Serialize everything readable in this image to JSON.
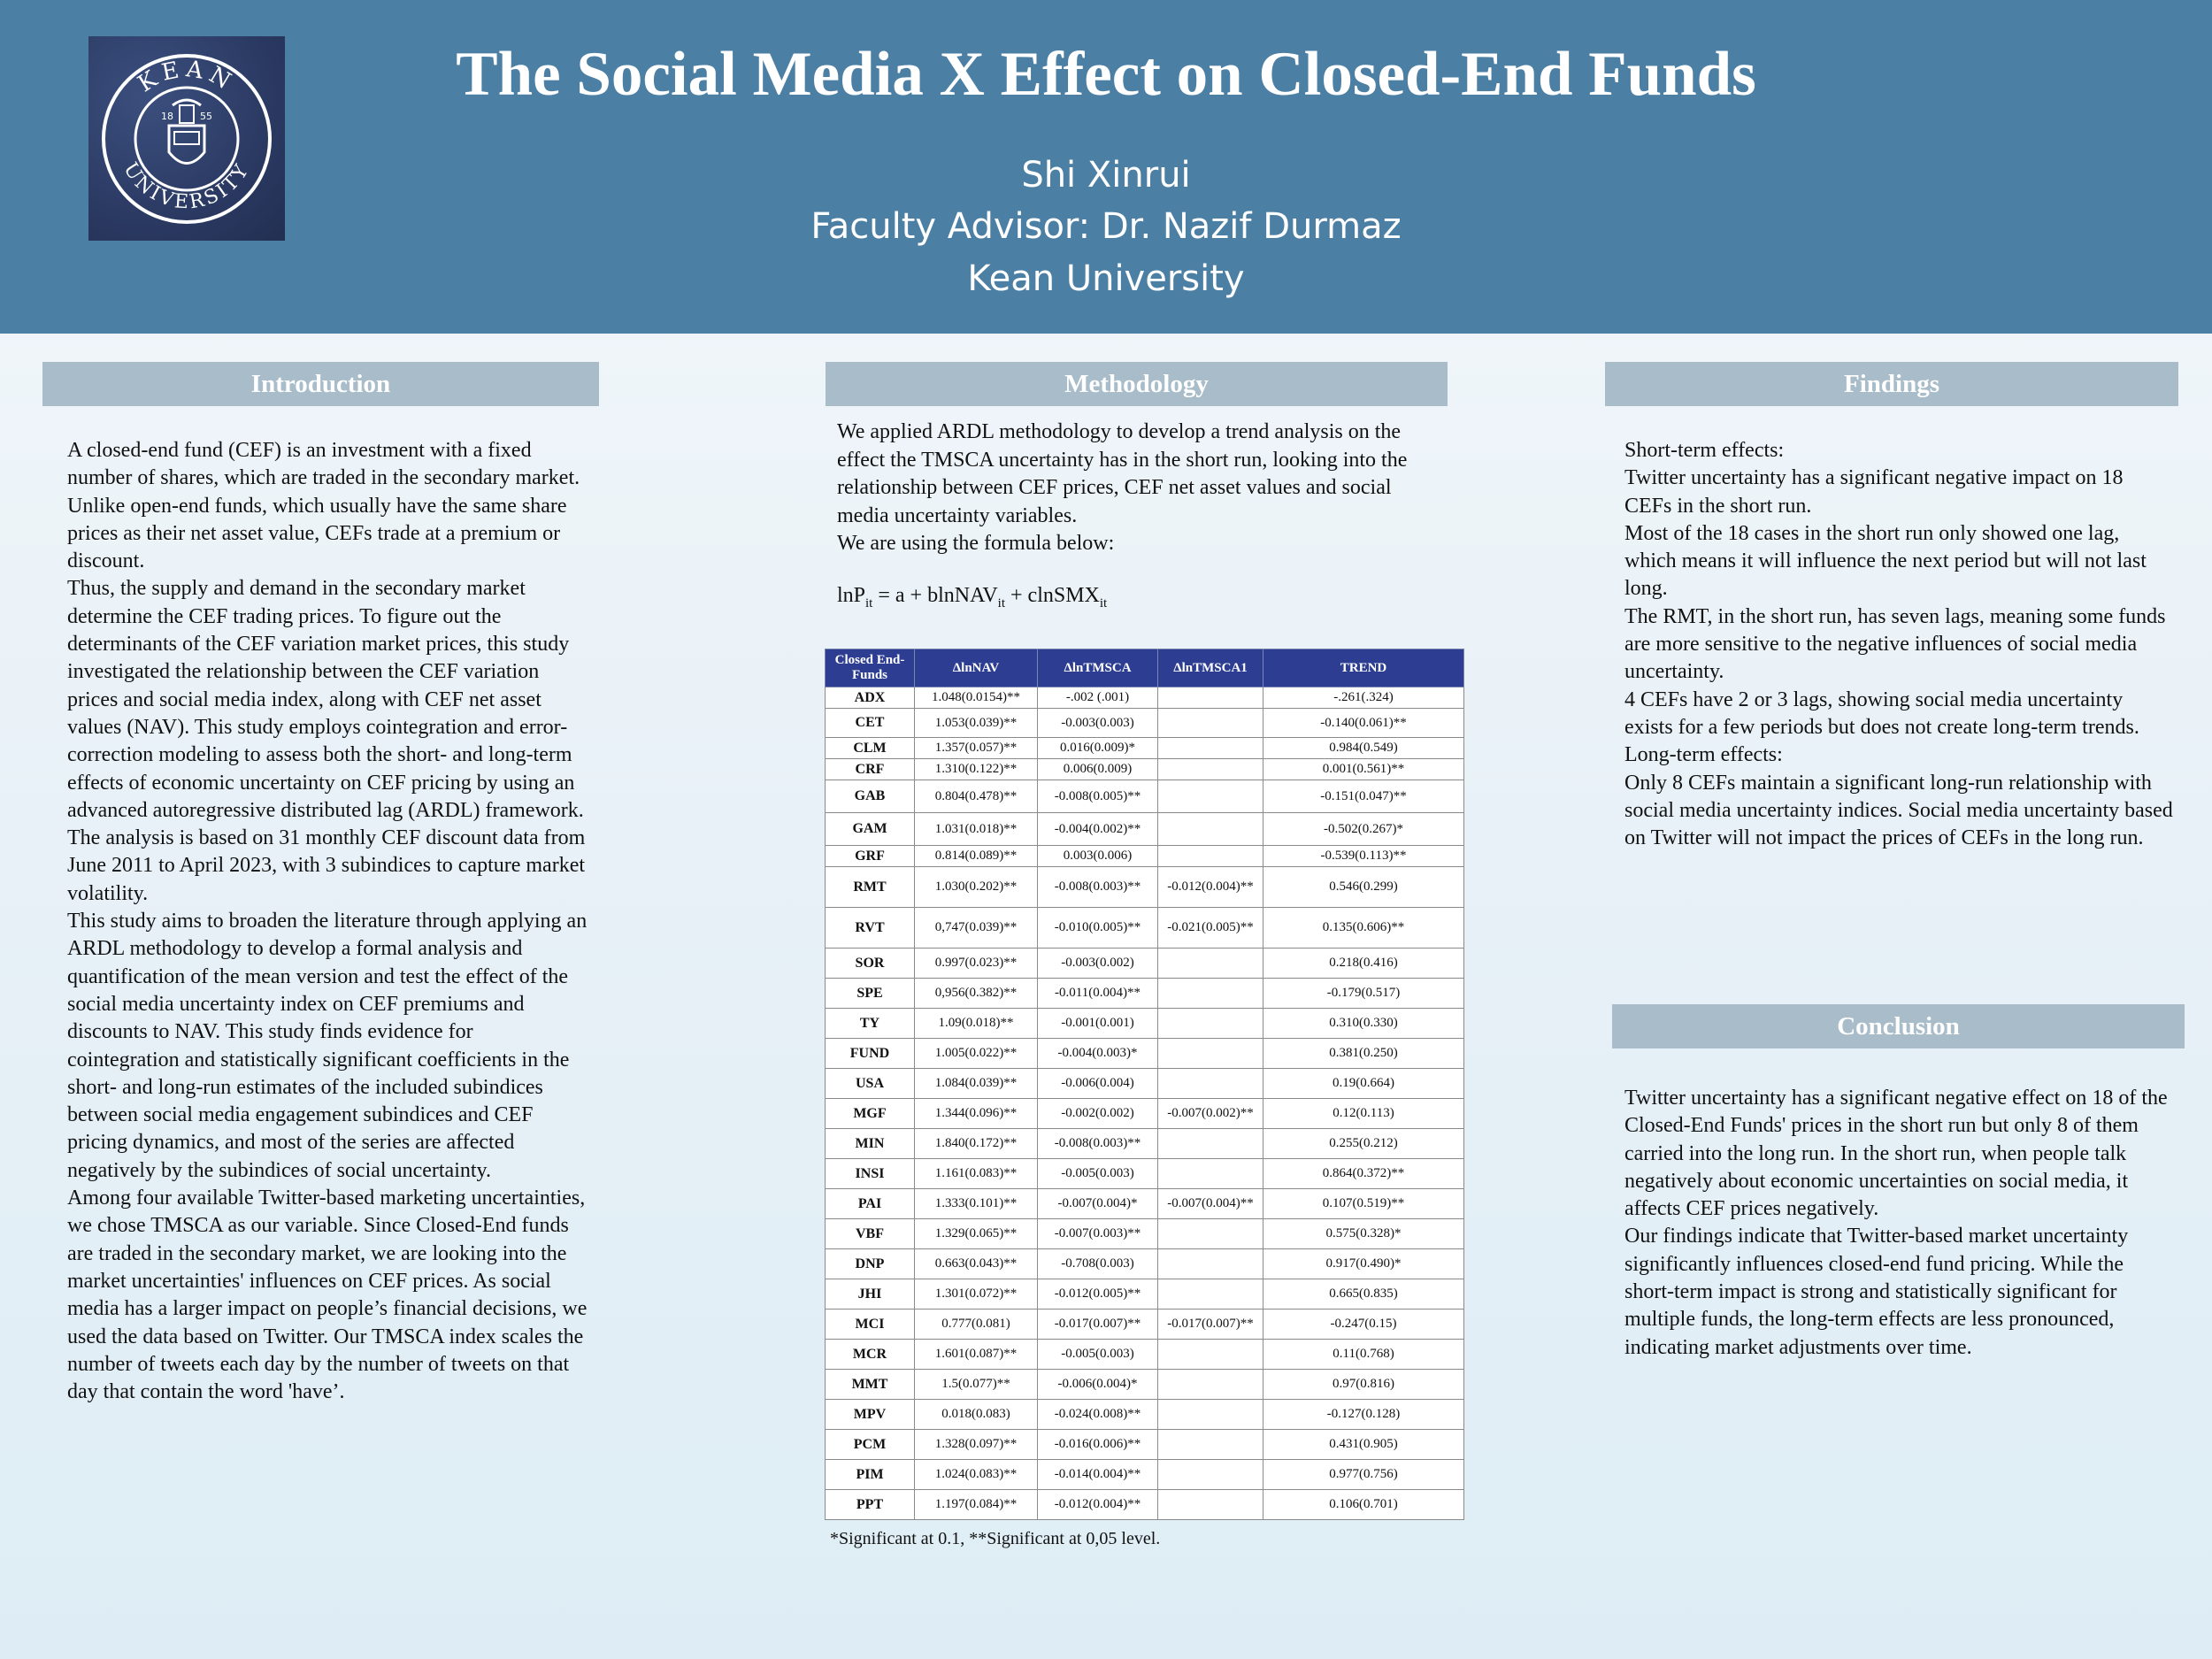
{
  "header": {
    "title": "The Social Media X Effect on Closed-End Funds",
    "author": "Shi Xinrui",
    "advisor": "Faculty Advisor: Dr. Nazif Durmaz",
    "institution": "Kean University",
    "logo": {
      "top_text": "KEAN",
      "bottom_text": "UNIVERSITY",
      "year_left": "18",
      "year_right": "55"
    }
  },
  "introduction": {
    "heading": "Introduction",
    "paragraphs": [
      "A closed-end fund (CEF) is an investment with a fixed number of shares, which are traded in the secondary market. Unlike open-end funds, which usually have the same share prices as their net asset value, CEFs trade at a premium or discount.",
      "Thus, the supply and demand in the secondary market determine the CEF trading prices. To figure out the determinants of the CEF variation market prices, this study investigated the relationship between the CEF variation prices and social media index, along with CEF net asset values (NAV). This study employs cointegration and error-correction modeling to assess both the short- and long-term effects of economic uncertainty on CEF pricing by using an advanced autoregressive distributed lag (ARDL) framework. The analysis is based on 31 monthly CEF discount data from June 2011 to April 2023, with 3 subindices to capture market volatility.",
      "This study aims to broaden the literature through applying an ARDL methodology to develop a formal analysis and quantification of the mean version and test the effect of the social media uncertainty index on CEF premiums and discounts to NAV. This study finds evidence for cointegration and statistically significant coefficients in the short- and long-run estimates of the included subindices between social media engagement subindices and CEF pricing dynamics, and most of the series are affected negatively by the subindices of social uncertainty.",
      "Among four available Twitter-based marketing uncertainties, we chose TMSCA as our variable. Since Closed-End funds are traded in the secondary market, we are looking into the market uncertainties' influences on CEF prices. As social media has a larger impact on people’s financial decisions, we used the data based on Twitter. Our TMSCA index scales the number of tweets each day by the number of tweets on that day that contain the word 'have’."
    ]
  },
  "methodology": {
    "heading": "Methodology",
    "paragraphs": [
      "We applied ARDL methodology to develop a trend analysis on the effect the TMSCA uncertainty has in the short run, looking into the relationship between CEF prices, CEF net asset values  and social media uncertainty variables.",
      "We are using the formula below:"
    ],
    "formula": {
      "p1": "lnP",
      "s1": "it",
      "p2": " = a + blnNAV",
      "s2": "it",
      "p3": " + clnSMX",
      "s3": "it"
    },
    "table": {
      "headers": [
        "Closed End-Funds",
        "ΔlnNAV",
        "ΔlnTMSCA",
        "ΔlnTMSCA1",
        "TREND"
      ],
      "rows": [
        [
          "ADX",
          "1.048(0.0154)**",
          "-.002  (.001)",
          "",
          "-.261(.324)"
        ],
        [
          "CET",
          "1.053(0.039)**",
          "-0.003(0.003)",
          "",
          "-0.140(0.061)**"
        ],
        [
          "CLM",
          "1.357(0.057)**",
          "0.016(0.009)*",
          "",
          "0.984(0.549)"
        ],
        [
          "CRF",
          "1.310(0.122)**",
          "0.006(0.009)",
          "",
          "0.001(0.561)**"
        ],
        [
          "GAB",
          "0.804(0.478)**",
          "-0.008(0.005)**",
          "",
          "-0.151(0.047)**"
        ],
        [
          "GAM",
          "1.031(0.018)**",
          "-0.004(0.002)**",
          "",
          "-0.502(0.267)*"
        ],
        [
          "GRF",
          "0.814(0.089)**",
          "0.003(0.006)",
          "",
          "-0.539(0.113)**"
        ],
        [
          "RMT",
          "1.030(0.202)**",
          "-0.008(0.003)**",
          "-0.012(0.004)**",
          "0.546(0.299)"
        ],
        [
          "RVT",
          "0,747(0.039)**",
          "-0.010(0.005)**",
          "-0.021(0.005)**",
          "0.135(0.606)**"
        ],
        [
          "SOR",
          "0.997(0.023)**",
          "-0.003(0.002)",
          "",
          "0.218(0.416)"
        ],
        [
          "SPE",
          "0,956(0.382)**",
          "-0.011(0.004)**",
          "",
          "-0.179(0.517)"
        ],
        [
          "TY",
          "1.09(0.018)**",
          "-0.001(0.001)",
          "",
          "0.310(0.330)"
        ],
        [
          "FUND",
          "1.005(0.022)**",
          "-0.004(0.003)*",
          "",
          "0.381(0.250)"
        ],
        [
          "USA",
          "1.084(0.039)**",
          "-0.006(0.004)",
          "",
          "0.19(0.664)"
        ],
        [
          "MGF",
          "1.344(0.096)**",
          "-0.002(0.002)",
          "-0.007(0.002)**",
          "0.12(0.113)"
        ],
        [
          "MIN",
          "1.840(0.172)**",
          "-0.008(0.003)**",
          "",
          "0.255(0.212)"
        ],
        [
          "INSI",
          "1.161(0.083)**",
          "-0.005(0.003)",
          "",
          "0.864(0.372)**"
        ],
        [
          "PAI",
          "1.333(0.101)**",
          "-0.007(0.004)*",
          "-0.007(0.004)**",
          "0.107(0.519)**"
        ],
        [
          "VBF",
          "1.329(0.065)**",
          "-0.007(0.003)**",
          "",
          "0.575(0.328)*"
        ],
        [
          "DNP",
          "0.663(0.043)**",
          "-0.708(0.003)",
          "",
          "0.917(0.490)*"
        ],
        [
          "JHI",
          "1.301(0.072)**",
          "-0.012(0.005)**",
          "",
          "0.665(0.835)"
        ],
        [
          "MCI",
          "0.777(0.081)",
          "-0.017(0.007)**",
          "-0.017(0.007)**",
          "-0.247(0.15)"
        ],
        [
          "MCR",
          "1.601(0.087)**",
          "-0.005(0.003)",
          "",
          "0.11(0.768)"
        ],
        [
          "MMT",
          "1.5(0.077)**",
          "-0.006(0.004)*",
          "",
          "0.97(0.816)"
        ],
        [
          "MPV",
          "0.018(0.083)",
          "-0.024(0.008)**",
          "",
          "-0.127(0.128)"
        ],
        [
          "PCM",
          "1.328(0.097)**",
          "-0.016(0.006)**",
          "",
          "0.431(0.905)"
        ],
        [
          "PIM",
          "1.024(0.083)**",
          "-0.014(0.004)**",
          "",
          "0.977(0.756)"
        ],
        [
          "PPT",
          "1.197(0.084)**",
          "-0.012(0.004)**",
          "",
          "0.106(0.701)"
        ]
      ],
      "note": "*Significant at 0.1, **Significant at 0,05 level."
    }
  },
  "findings": {
    "heading": "Findings",
    "lines": [
      "Short-term effects:",
      "Twitter uncertainty has a significant negative impact on 18 CEFs in the short run.",
      "Most of the 18 cases in the short run only showed one lag, which means it will influence the next period but will not last long.",
      "The RMT, in the short run, has seven lags, meaning some funds are more sensitive to the negative influences of social media uncertainty.",
      "4 CEFs have 2 or 3 lags, showing social media uncertainty exists for a few periods but does not create long-term trends.",
      "Long-term effects:",
      "Only 8 CEFs maintain a significant long-run relationship with social media uncertainty indices. Social media uncertainty based on Twitter will not impact the prices of CEFs in the long run."
    ]
  },
  "conclusion": {
    "heading": "Conclusion",
    "paragraphs": [
      "Twitter uncertainty has a significant negative effect on 18 of the Closed-End Funds' prices in the short run but only 8 of them carried into the long run. In the short run, when people talk negatively about economic uncertainties on social media, it affects CEF prices negatively.",
      "Our findings indicate that Twitter-based market uncertainty significantly influences closed-end fund pricing. While the short-term impact is strong and statistically significant for multiple funds, the long-term effects are less pronounced, indicating market adjustments over time."
    ]
  },
  "colors": {
    "header_bg": "#4c7fa4",
    "section_bar": "#a8bdc9",
    "table_header": "#2d3e92"
  }
}
